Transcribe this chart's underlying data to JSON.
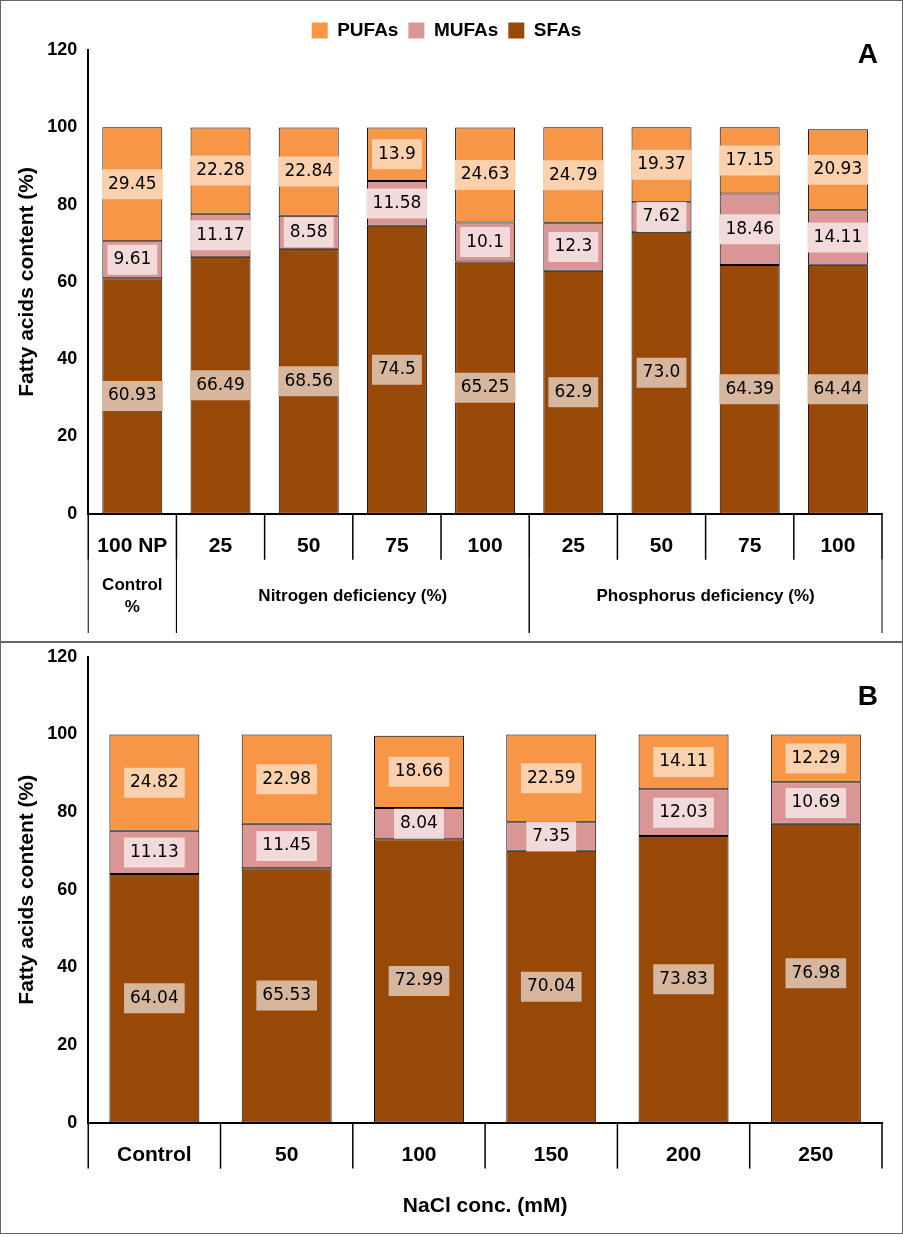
{
  "chart_data": [
    {
      "type": "bar",
      "stacked": true,
      "ylabel": "Fatty acids content (%)",
      "categories": [
        "100 NP",
        "25",
        "50",
        "75",
        "100",
        "25",
        "50",
        "75",
        "100"
      ],
      "ylim": [
        0,
        120
      ],
      "yticks": [
        0,
        20,
        40,
        60,
        80,
        100,
        120
      ],
      "legend": "top",
      "annotations": [
        "A",
        "Control %",
        "Nitrogen deficiency (%)",
        "Phosphorus deficiency (%)"
      ],
      "series": [
        {
          "name": "SFAs",
          "color": "#984807",
          "values": [
            60.93,
            66.49,
            68.56,
            74.5,
            65.25,
            62.9,
            73.0,
            64.39,
            64.44
          ],
          "value_labels": [
            "60.93",
            "66.49",
            "68.56",
            "74.5",
            "65.25",
            "62.9",
            "73.0",
            "64.39",
            "64.44"
          ]
        },
        {
          "name": "MUFAs",
          "color": "#d99694",
          "values": [
            9.61,
            11.17,
            8.58,
            11.58,
            10.1,
            12.3,
            7.62,
            18.46,
            14.11
          ],
          "value_labels": [
            "9.61",
            "11.17",
            "8.58",
            "11.58",
            "10.1",
            "12.3",
            "7.62",
            "18.46",
            "14.11"
          ]
        },
        {
          "name": "PUFAs",
          "color": "#f79646",
          "values": [
            29.45,
            22.28,
            22.84,
            13.9,
            24.63,
            24.79,
            19.37,
            17.15,
            20.93
          ],
          "value_labels": [
            "29.45",
            "22.28",
            "22.84",
            "13.9",
            "24.63",
            "24.79",
            "19.37",
            "17.15",
            "20.93"
          ]
        }
      ]
    },
    {
      "type": "bar",
      "stacked": true,
      "ylabel": "Fatty acids content (%)",
      "xlabel": "NaCl conc. (mM)",
      "categories": [
        "Control",
        "50",
        "100",
        "150",
        "200",
        "250"
      ],
      "ylim": [
        0,
        120
      ],
      "yticks": [
        0,
        20,
        40,
        60,
        80,
        100,
        120
      ],
      "annotations": [
        "B"
      ],
      "series": [
        {
          "color": "#984807",
          "values": [
            64.04,
            65.53,
            72.99,
            70.04,
            73.83,
            76.98
          ],
          "value_labels": [
            "64.04",
            "65.53",
            "72.99",
            "70.04",
            "73.83",
            "76.98"
          ]
        },
        {
          "color": "#d99694",
          "values": [
            11.13,
            11.45,
            8.04,
            7.35,
            12.03,
            10.69
          ],
          "value_labels": [
            "11.13",
            "11.45",
            "8.04",
            "7.35",
            "12.03",
            "10.69"
          ]
        },
        {
          "color": "#f79646",
          "values": [
            24.82,
            22.98,
            18.66,
            22.59,
            14.11,
            12.29
          ],
          "value_labels": [
            "24.82",
            "22.98",
            "18.66",
            "22.59",
            "14.11",
            "12.29"
          ]
        }
      ]
    }
  ]
}
